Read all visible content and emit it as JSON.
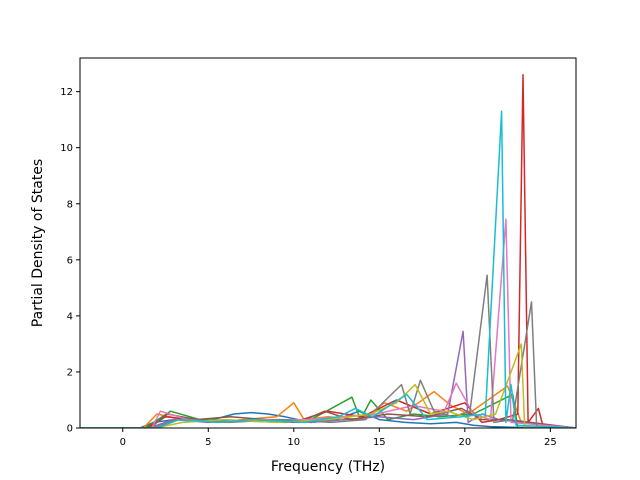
{
  "chart_data": {
    "type": "line",
    "title": "",
    "xlabel": "Frequency (THz)",
    "ylabel": "Partial Density of States",
    "xlim": [
      -2.5,
      26.5
    ],
    "ylim": [
      0,
      13.2
    ],
    "xticks": [
      0,
      5,
      10,
      15,
      20,
      25
    ],
    "yticks": [
      0,
      2,
      4,
      6,
      8,
      10,
      12
    ],
    "grid": false,
    "legend": "none",
    "series": [
      {
        "color": "#1f77b4",
        "points": [
          [
            -2.5,
            0
          ],
          [
            1,
            0
          ],
          [
            1.8,
            0.2
          ],
          [
            3,
            0.3
          ],
          [
            5,
            0.25
          ],
          [
            6.5,
            0.5
          ],
          [
            7.5,
            0.55
          ],
          [
            8.5,
            0.5
          ],
          [
            9.5,
            0.4
          ],
          [
            11,
            0.2
          ],
          [
            12.5,
            0.3
          ],
          [
            13.8,
            0.6
          ],
          [
            15,
            0.3
          ],
          [
            16.5,
            0.2
          ],
          [
            18,
            0.15
          ],
          [
            19.5,
            0.2
          ],
          [
            20.5,
            0.1
          ],
          [
            21.5,
            0.05
          ],
          [
            23,
            0.02
          ],
          [
            26.5,
            0
          ]
        ]
      },
      {
        "color": "#ff7f0e",
        "points": [
          [
            -2.5,
            0
          ],
          [
            1.2,
            0
          ],
          [
            2,
            0.5
          ],
          [
            3.5,
            0.3
          ],
          [
            5.5,
            0.2
          ],
          [
            7,
            0.3
          ],
          [
            9,
            0.4
          ],
          [
            10,
            0.9
          ],
          [
            10.6,
            0.3
          ],
          [
            12,
            0.4
          ],
          [
            14,
            0.3
          ],
          [
            15.3,
            0.9
          ],
          [
            16.6,
            0.6
          ],
          [
            18.2,
            1.3
          ],
          [
            19.2,
            0.8
          ],
          [
            20.2,
            0.5
          ],
          [
            22.5,
            1.5
          ],
          [
            23.3,
            0.2
          ],
          [
            26.5,
            0
          ]
        ]
      },
      {
        "color": "#2ca02c",
        "points": [
          [
            -2.5,
            0
          ],
          [
            1.3,
            0
          ],
          [
            2.8,
            0.6
          ],
          [
            4.5,
            0.3
          ],
          [
            7,
            0.25
          ],
          [
            9.5,
            0.2
          ],
          [
            11,
            0.3
          ],
          [
            13.4,
            1.1
          ],
          [
            13.9,
            0.3
          ],
          [
            14.5,
            1.0
          ],
          [
            15.5,
            0.3
          ],
          [
            17,
            0.5
          ],
          [
            18.5,
            0.4
          ],
          [
            20.5,
            0.5
          ],
          [
            22.8,
            1.2
          ],
          [
            23.1,
            0
          ],
          [
            26.5,
            0
          ]
        ]
      },
      {
        "color": "#d62728",
        "points": [
          [
            -2.5,
            0
          ],
          [
            1.4,
            0
          ],
          [
            2.5,
            0.4
          ],
          [
            4,
            0.3
          ],
          [
            6,
            0.2
          ],
          [
            8,
            0.3
          ],
          [
            10,
            0.2
          ],
          [
            12,
            0.6
          ],
          [
            14,
            0.4
          ],
          [
            16,
            1.0
          ],
          [
            18,
            0.5
          ],
          [
            20,
            0.9
          ],
          [
            21,
            0.2
          ],
          [
            22,
            0.3
          ],
          [
            23.1,
            0.5
          ],
          [
            23.4,
            12.6
          ],
          [
            23.7,
            0.2
          ],
          [
            24.3,
            0.7
          ],
          [
            24.6,
            0
          ],
          [
            26.5,
            0
          ]
        ]
      },
      {
        "color": "#9467bd",
        "points": [
          [
            -2.5,
            0
          ],
          [
            1.5,
            0
          ],
          [
            3,
            0.3
          ],
          [
            5,
            0.2
          ],
          [
            8,
            0.3
          ],
          [
            11,
            0.2
          ],
          [
            13,
            0.3
          ],
          [
            15,
            0.4
          ],
          [
            17,
            0.3
          ],
          [
            19,
            0.5
          ],
          [
            19.9,
            3.45
          ],
          [
            20.2,
            0.2
          ],
          [
            21,
            0.5
          ],
          [
            22,
            0.3
          ],
          [
            26.5,
            0
          ]
        ]
      },
      {
        "color": "#8c564b",
        "points": [
          [
            -2.5,
            0
          ],
          [
            1.6,
            0
          ],
          [
            2.6,
            0.5
          ],
          [
            4.3,
            0.3
          ],
          [
            6.3,
            0.4
          ],
          [
            8.3,
            0.3
          ],
          [
            10.3,
            0.2
          ],
          [
            11.8,
            0.6
          ],
          [
            13.3,
            0.3
          ],
          [
            15.5,
            0.5
          ],
          [
            17.8,
            0.4
          ],
          [
            19.8,
            0.7
          ],
          [
            21,
            0.3
          ],
          [
            22.5,
            0.3
          ],
          [
            26.5,
            0
          ]
        ]
      },
      {
        "color": "#e377c2",
        "points": [
          [
            -2.5,
            0
          ],
          [
            1.7,
            0
          ],
          [
            2.2,
            0.6
          ],
          [
            3.8,
            0.3
          ],
          [
            5.8,
            0.2
          ],
          [
            8.2,
            0.3
          ],
          [
            10.8,
            0.3
          ],
          [
            12.8,
            0.4
          ],
          [
            14.8,
            0.5
          ],
          [
            17,
            0.8
          ],
          [
            18.8,
            0.6
          ],
          [
            19.5,
            1.6
          ],
          [
            20.5,
            0.5
          ],
          [
            21.5,
            0.3
          ],
          [
            22.4,
            7.45
          ],
          [
            22.7,
            0.2
          ],
          [
            26.5,
            0
          ]
        ]
      },
      {
        "color": "#7f7f7f",
        "points": [
          [
            -2.5,
            0
          ],
          [
            1.8,
            0
          ],
          [
            3.2,
            0.3
          ],
          [
            6.2,
            0.2
          ],
          [
            9.2,
            0.3
          ],
          [
            12.2,
            0.2
          ],
          [
            14.2,
            0.3
          ],
          [
            16.3,
            1.55
          ],
          [
            16.8,
            0.5
          ],
          [
            17.4,
            1.7
          ],
          [
            18.2,
            0.6
          ],
          [
            19.3,
            0.4
          ],
          [
            20.3,
            0.6
          ],
          [
            21.3,
            5.45
          ],
          [
            21.7,
            0.2
          ],
          [
            22.8,
            0.3
          ],
          [
            23.9,
            4.5
          ],
          [
            24.2,
            0
          ],
          [
            26.5,
            0
          ]
        ]
      },
      {
        "color": "#bcbd22",
        "points": [
          [
            -2.5,
            0
          ],
          [
            1.9,
            0
          ],
          [
            3.5,
            0.2
          ],
          [
            6,
            0.3
          ],
          [
            9,
            0.2
          ],
          [
            12,
            0.3
          ],
          [
            14.5,
            0.5
          ],
          [
            16,
            0.9
          ],
          [
            17.1,
            1.55
          ],
          [
            18,
            0.5
          ],
          [
            19,
            0.6
          ],
          [
            20.5,
            0.3
          ],
          [
            21.8,
            0.5
          ],
          [
            23.3,
            3.0
          ],
          [
            23.5,
            0
          ],
          [
            26.5,
            0
          ]
        ]
      },
      {
        "color": "#17becf",
        "points": [
          [
            -2.5,
            0
          ],
          [
            2,
            0
          ],
          [
            3.3,
            0.3
          ],
          [
            5.6,
            0.2
          ],
          [
            7.6,
            0.3
          ],
          [
            10.6,
            0.2
          ],
          [
            12.6,
            0.4
          ],
          [
            13.6,
            0.7
          ],
          [
            14.6,
            0.4
          ],
          [
            16.6,
            1.2
          ],
          [
            17.8,
            0.3
          ],
          [
            19.8,
            0.4
          ],
          [
            21.2,
            0.5
          ],
          [
            22.15,
            11.3
          ],
          [
            22.4,
            0.2
          ],
          [
            22.7,
            1.55
          ],
          [
            23,
            0.1
          ],
          [
            26.5,
            0
          ]
        ]
      }
    ]
  }
}
